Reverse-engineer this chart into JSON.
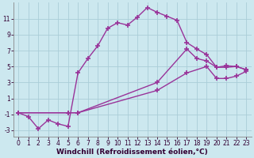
{
  "background_color": "#cce8ef",
  "grid_color": "#aacdd8",
  "line_color": "#993399",
  "marker": "+",
  "markersize": 4,
  "markeredgewidth": 1.2,
  "linewidth": 1.0,
  "xlabel": "Windchill (Refroidissement éolien,°C)",
  "xlabel_fontsize": 6.5,
  "tick_fontsize": 5.5,
  "xlim": [
    -0.5,
    23.5
  ],
  "ylim": [
    -3.8,
    13.0
  ],
  "yticks": [
    -3,
    -1,
    1,
    3,
    5,
    7,
    9,
    11
  ],
  "xticks": [
    0,
    1,
    2,
    3,
    4,
    5,
    6,
    7,
    8,
    9,
    10,
    11,
    12,
    13,
    14,
    15,
    16,
    17,
    18,
    19,
    20,
    21,
    22,
    23
  ],
  "line1_x": [
    0,
    1,
    2,
    3,
    4,
    5,
    6,
    7,
    8,
    9,
    10,
    11,
    12,
    13,
    14,
    15,
    16,
    17,
    18,
    19,
    20,
    21,
    22,
    23
  ],
  "line1_y": [
    -0.8,
    -1.3,
    -2.8,
    -1.7,
    -2.2,
    -2.5,
    4.2,
    6.0,
    7.6,
    9.8,
    10.5,
    10.2,
    11.2,
    12.4,
    11.8,
    11.3,
    10.8,
    8.0,
    7.2,
    6.5,
    4.9,
    5.1,
    5.0,
    4.6
  ],
  "line2_x": [
    0,
    5,
    6,
    14,
    17,
    18,
    19,
    20,
    21,
    22,
    23
  ],
  "line2_y": [
    -0.8,
    -0.8,
    -0.8,
    3.0,
    7.2,
    6.0,
    5.7,
    4.9,
    4.9,
    5.0,
    4.6
  ],
  "line3_x": [
    0,
    5,
    6,
    14,
    17,
    19,
    20,
    21,
    22,
    23
  ],
  "line3_y": [
    -0.8,
    -0.8,
    -0.8,
    2.0,
    4.2,
    5.0,
    3.5,
    3.5,
    3.8,
    4.4
  ]
}
